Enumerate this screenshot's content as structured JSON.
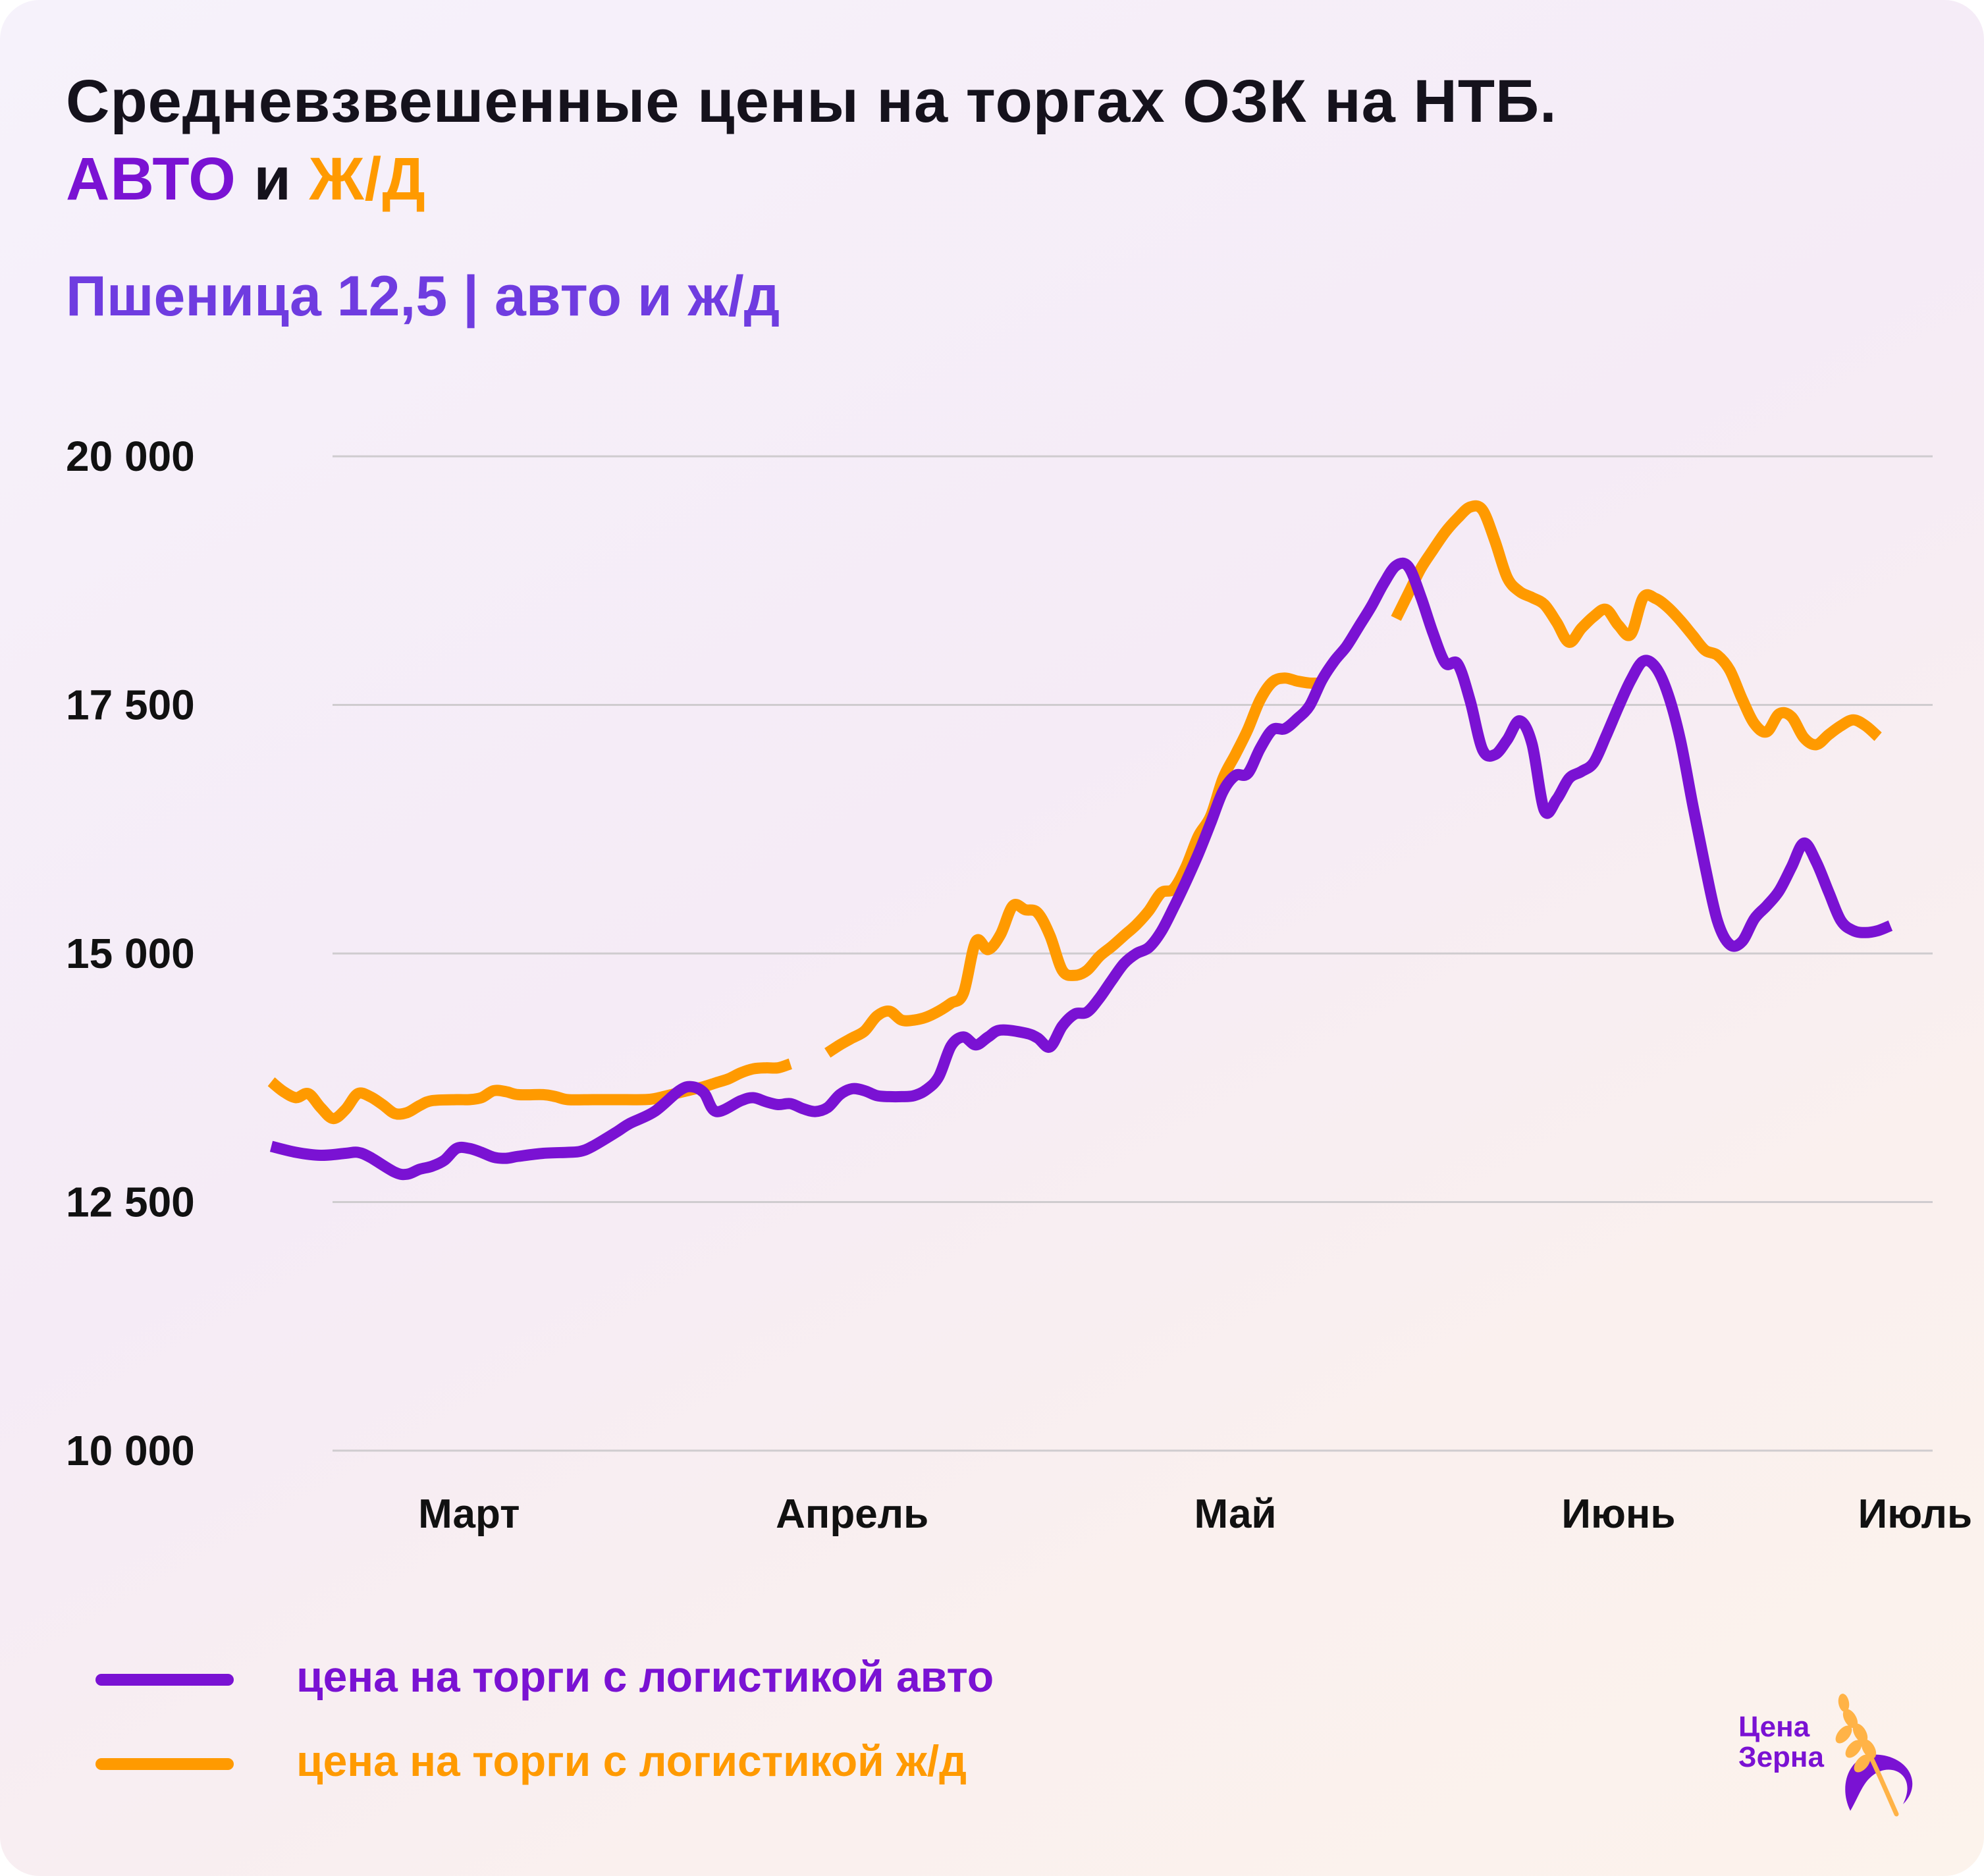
{
  "title": {
    "line1": "Средневзвешенные цены на торгах ОЗК на НТБ.",
    "auto": "АВТО",
    "conj": " и ",
    "rail": "Ж/Д"
  },
  "subtitle": "Пшеница 12,5 | авто и ж/д",
  "colors": {
    "auto": "#7a12d3",
    "rail": "#ff9a00",
    "grid": "#cfcccf",
    "subtitle": "#6f3ce0"
  },
  "legend": {
    "auto_label": "цена на торги с логистикой авто",
    "rail_label": "цена на торги с логистикой ж/д"
  },
  "logo": {
    "line1": "Цена",
    "line2": "Зерна"
  },
  "chart_data": {
    "type": "line",
    "title": "Средневзвешенные цены на торгах ОЗК на НТБ. АВТО и Ж/Д",
    "subtitle": "Пшеница 12,5 | авто и ж/д",
    "xlabel": "",
    "ylabel": "",
    "ylim": [
      10000,
      20000
    ],
    "yticks": [
      10000,
      12500,
      15000,
      17500,
      20000
    ],
    "ytick_labels": [
      "10 000",
      "12 500",
      "15 000",
      "17 500",
      "20 000"
    ],
    "xlim": [
      0,
      131
    ],
    "xticks": [
      {
        "label": "Март",
        "x": 16
      },
      {
        "label": "Апрель",
        "x": 47
      },
      {
        "label": "Май",
        "x": 78
      },
      {
        "label": "Июнь",
        "x": 109
      },
      {
        "label": "Июль",
        "x": 133
      }
    ],
    "grid": true,
    "legend_position": "bottom-left",
    "series": [
      {
        "name": "цена на торги с логистикой авто",
        "color": "#7a12d3",
        "points": [
          [
            0,
            13060
          ],
          [
            2,
            13000
          ],
          [
            4,
            12970
          ],
          [
            6,
            12990
          ],
          [
            7,
            13000
          ],
          [
            8,
            12950
          ],
          [
            10,
            12800
          ],
          [
            11,
            12780
          ],
          [
            12,
            12830
          ],
          [
            13,
            12860
          ],
          [
            14,
            12920
          ],
          [
            15,
            13040
          ],
          [
            16,
            13040
          ],
          [
            17,
            13000
          ],
          [
            18,
            12950
          ],
          [
            19,
            12940
          ],
          [
            20,
            12960
          ],
          [
            22,
            12990
          ],
          [
            24,
            13000
          ],
          [
            25,
            13010
          ],
          [
            26,
            13060
          ],
          [
            28,
            13210
          ],
          [
            29,
            13290
          ],
          [
            31,
            13410
          ],
          [
            33,
            13620
          ],
          [
            34,
            13660
          ],
          [
            35,
            13600
          ],
          [
            36,
            13410
          ],
          [
            38,
            13520
          ],
          [
            39,
            13550
          ],
          [
            40,
            13510
          ],
          [
            41,
            13480
          ],
          [
            42,
            13490
          ],
          [
            43,
            13440
          ],
          [
            44,
            13410
          ],
          [
            45,
            13450
          ],
          [
            46,
            13580
          ],
          [
            47,
            13640
          ],
          [
            48,
            13620
          ],
          [
            49,
            13570
          ],
          [
            50,
            13560
          ],
          [
            51,
            13560
          ],
          [
            52,
            13570
          ],
          [
            53,
            13630
          ],
          [
            54,
            13760
          ],
          [
            55,
            14070
          ],
          [
            56,
            14160
          ],
          [
            57,
            14080
          ],
          [
            58,
            14160
          ],
          [
            59,
            14230
          ],
          [
            61,
            14200
          ],
          [
            62,
            14150
          ],
          [
            63,
            14060
          ],
          [
            64,
            14270
          ],
          [
            65,
            14390
          ],
          [
            66,
            14410
          ],
          [
            67,
            14550
          ],
          [
            68,
            14730
          ],
          [
            69,
            14900
          ],
          [
            70,
            15000
          ],
          [
            71,
            15060
          ],
          [
            72,
            15220
          ],
          [
            73,
            15460
          ],
          [
            74,
            15720
          ],
          [
            75,
            16000
          ],
          [
            76,
            16310
          ],
          [
            77,
            16630
          ],
          [
            78,
            16790
          ],
          [
            79,
            16810
          ],
          [
            80,
            17060
          ],
          [
            81,
            17250
          ],
          [
            82,
            17260
          ],
          [
            83,
            17360
          ],
          [
            84,
            17490
          ],
          [
            85,
            17750
          ],
          [
            86,
            17940
          ],
          [
            87,
            18090
          ],
          [
            88,
            18290
          ],
          [
            89,
            18490
          ],
          [
            90,
            18720
          ],
          [
            91,
            18900
          ],
          [
            92,
            18890
          ],
          [
            93,
            18590
          ],
          [
            94,
            18220
          ],
          [
            95,
            17920
          ],
          [
            96,
            17910
          ],
          [
            97,
            17540
          ],
          [
            98,
            17050
          ],
          [
            99,
            17000
          ],
          [
            100,
            17150
          ],
          [
            101,
            17340
          ],
          [
            102,
            17110
          ],
          [
            103,
            16440
          ],
          [
            104,
            16550
          ],
          [
            105,
            16760
          ],
          [
            106,
            16830
          ],
          [
            107,
            16920
          ],
          [
            108,
            17190
          ],
          [
            109,
            17480
          ],
          [
            110,
            17750
          ],
          [
            111,
            17940
          ],
          [
            112,
            17880
          ],
          [
            113,
            17610
          ],
          [
            114,
            17150
          ],
          [
            115,
            16500
          ],
          [
            116,
            15880
          ],
          [
            117,
            15330
          ],
          [
            118,
            15090
          ],
          [
            119,
            15120
          ],
          [
            120,
            15350
          ],
          [
            121,
            15480
          ],
          [
            122,
            15630
          ],
          [
            123,
            15870
          ],
          [
            124,
            16110
          ],
          [
            125,
            15920
          ],
          [
            126,
            15620
          ],
          [
            127,
            15330
          ],
          [
            128,
            15230
          ],
          [
            129,
            15210
          ],
          [
            130,
            15230
          ],
          [
            131,
            15280
          ]
        ]
      },
      {
        "name": "цена на торги с логистикой ж/д",
        "color": "#ff9a00",
        "segments": [
          [
            [
              0,
              13710
            ],
            [
              1,
              13610
            ],
            [
              2,
              13550
            ],
            [
              3,
              13590
            ],
            [
              4,
              13450
            ],
            [
              5,
              13340
            ],
            [
              6,
              13430
            ],
            [
              7,
              13590
            ],
            [
              8,
              13560
            ],
            [
              9,
              13480
            ],
            [
              10,
              13390
            ],
            [
              11,
              13400
            ],
            [
              12,
              13470
            ],
            [
              13,
              13520
            ],
            [
              15,
              13530
            ],
            [
              16,
              13530
            ],
            [
              17,
              13550
            ],
            [
              18,
              13620
            ],
            [
              19,
              13610
            ],
            [
              20,
              13580
            ],
            [
              22,
              13580
            ],
            [
              23,
              13560
            ],
            [
              24,
              13530
            ],
            [
              26,
              13530
            ],
            [
              28,
              13530
            ],
            [
              30,
              13530
            ],
            [
              31,
              13540
            ],
            [
              33,
              13600
            ],
            [
              34,
              13630
            ],
            [
              35,
              13660
            ],
            [
              36,
              13700
            ],
            [
              37,
              13740
            ],
            [
              38,
              13800
            ],
            [
              39,
              13840
            ],
            [
              40,
              13850
            ],
            [
              41,
              13850
            ],
            [
              42,
              13890
            ]
          ],
          [
            [
              45,
              14000
            ],
            [
              46,
              14080
            ],
            [
              47,
              14150
            ],
            [
              48,
              14220
            ],
            [
              49,
              14370
            ],
            [
              50,
              14420
            ],
            [
              51,
              14330
            ],
            [
              52,
              14330
            ],
            [
              53,
              14360
            ],
            [
              54,
              14420
            ],
            [
              55,
              14500
            ],
            [
              56,
              14600
            ],
            [
              57,
              15120
            ],
            [
              58,
              15040
            ],
            [
              59,
              15190
            ],
            [
              60,
              15480
            ],
            [
              61,
              15440
            ],
            [
              62,
              15410
            ],
            [
              63,
              15180
            ],
            [
              64,
              14830
            ],
            [
              65,
              14780
            ],
            [
              66,
              14830
            ],
            [
              67,
              14970
            ],
            [
              68,
              15070
            ],
            [
              69,
              15180
            ],
            [
              70,
              15290
            ],
            [
              71,
              15430
            ],
            [
              72,
              15610
            ],
            [
              73,
              15650
            ],
            [
              74,
              15870
            ],
            [
              75,
              16180
            ],
            [
              76,
              16380
            ],
            [
              77,
              16760
            ],
            [
              78,
              17000
            ],
            [
              79,
              17250
            ],
            [
              80,
              17550
            ],
            [
              81,
              17730
            ],
            [
              82,
              17770
            ],
            [
              83,
              17740
            ],
            [
              84,
              17720
            ],
            [
              85,
              17720
            ]
          ],
          [
            [
              91,
              18370
            ],
            [
              92,
              18620
            ],
            [
              93,
              18870
            ],
            [
              94,
              19060
            ],
            [
              95,
              19240
            ],
            [
              96,
              19380
            ],
            [
              97,
              19490
            ],
            [
              98,
              19460
            ],
            [
              99,
              19150
            ],
            [
              100,
              18780
            ],
            [
              101,
              18640
            ],
            [
              102,
              18580
            ],
            [
              103,
              18510
            ],
            [
              104,
              18330
            ],
            [
              105,
              18130
            ],
            [
              106,
              18270
            ],
            [
              107,
              18390
            ],
            [
              108,
              18460
            ],
            [
              109,
              18300
            ],
            [
              110,
              18210
            ],
            [
              111,
              18580
            ],
            [
              112,
              18570
            ],
            [
              113,
              18480
            ],
            [
              114,
              18350
            ],
            [
              115,
              18200
            ],
            [
              116,
              18050
            ],
            [
              117,
              18000
            ],
            [
              118,
              17850
            ],
            [
              119,
              17560
            ],
            [
              120,
              17310
            ],
            [
              121,
              17230
            ],
            [
              122,
              17410
            ],
            [
              123,
              17380
            ],
            [
              124,
              17170
            ],
            [
              125,
              17100
            ],
            [
              126,
              17200
            ],
            [
              127,
              17290
            ],
            [
              128,
              17350
            ],
            [
              129,
              17290
            ],
            [
              130,
              17180
            ]
          ]
        ]
      }
    ]
  }
}
